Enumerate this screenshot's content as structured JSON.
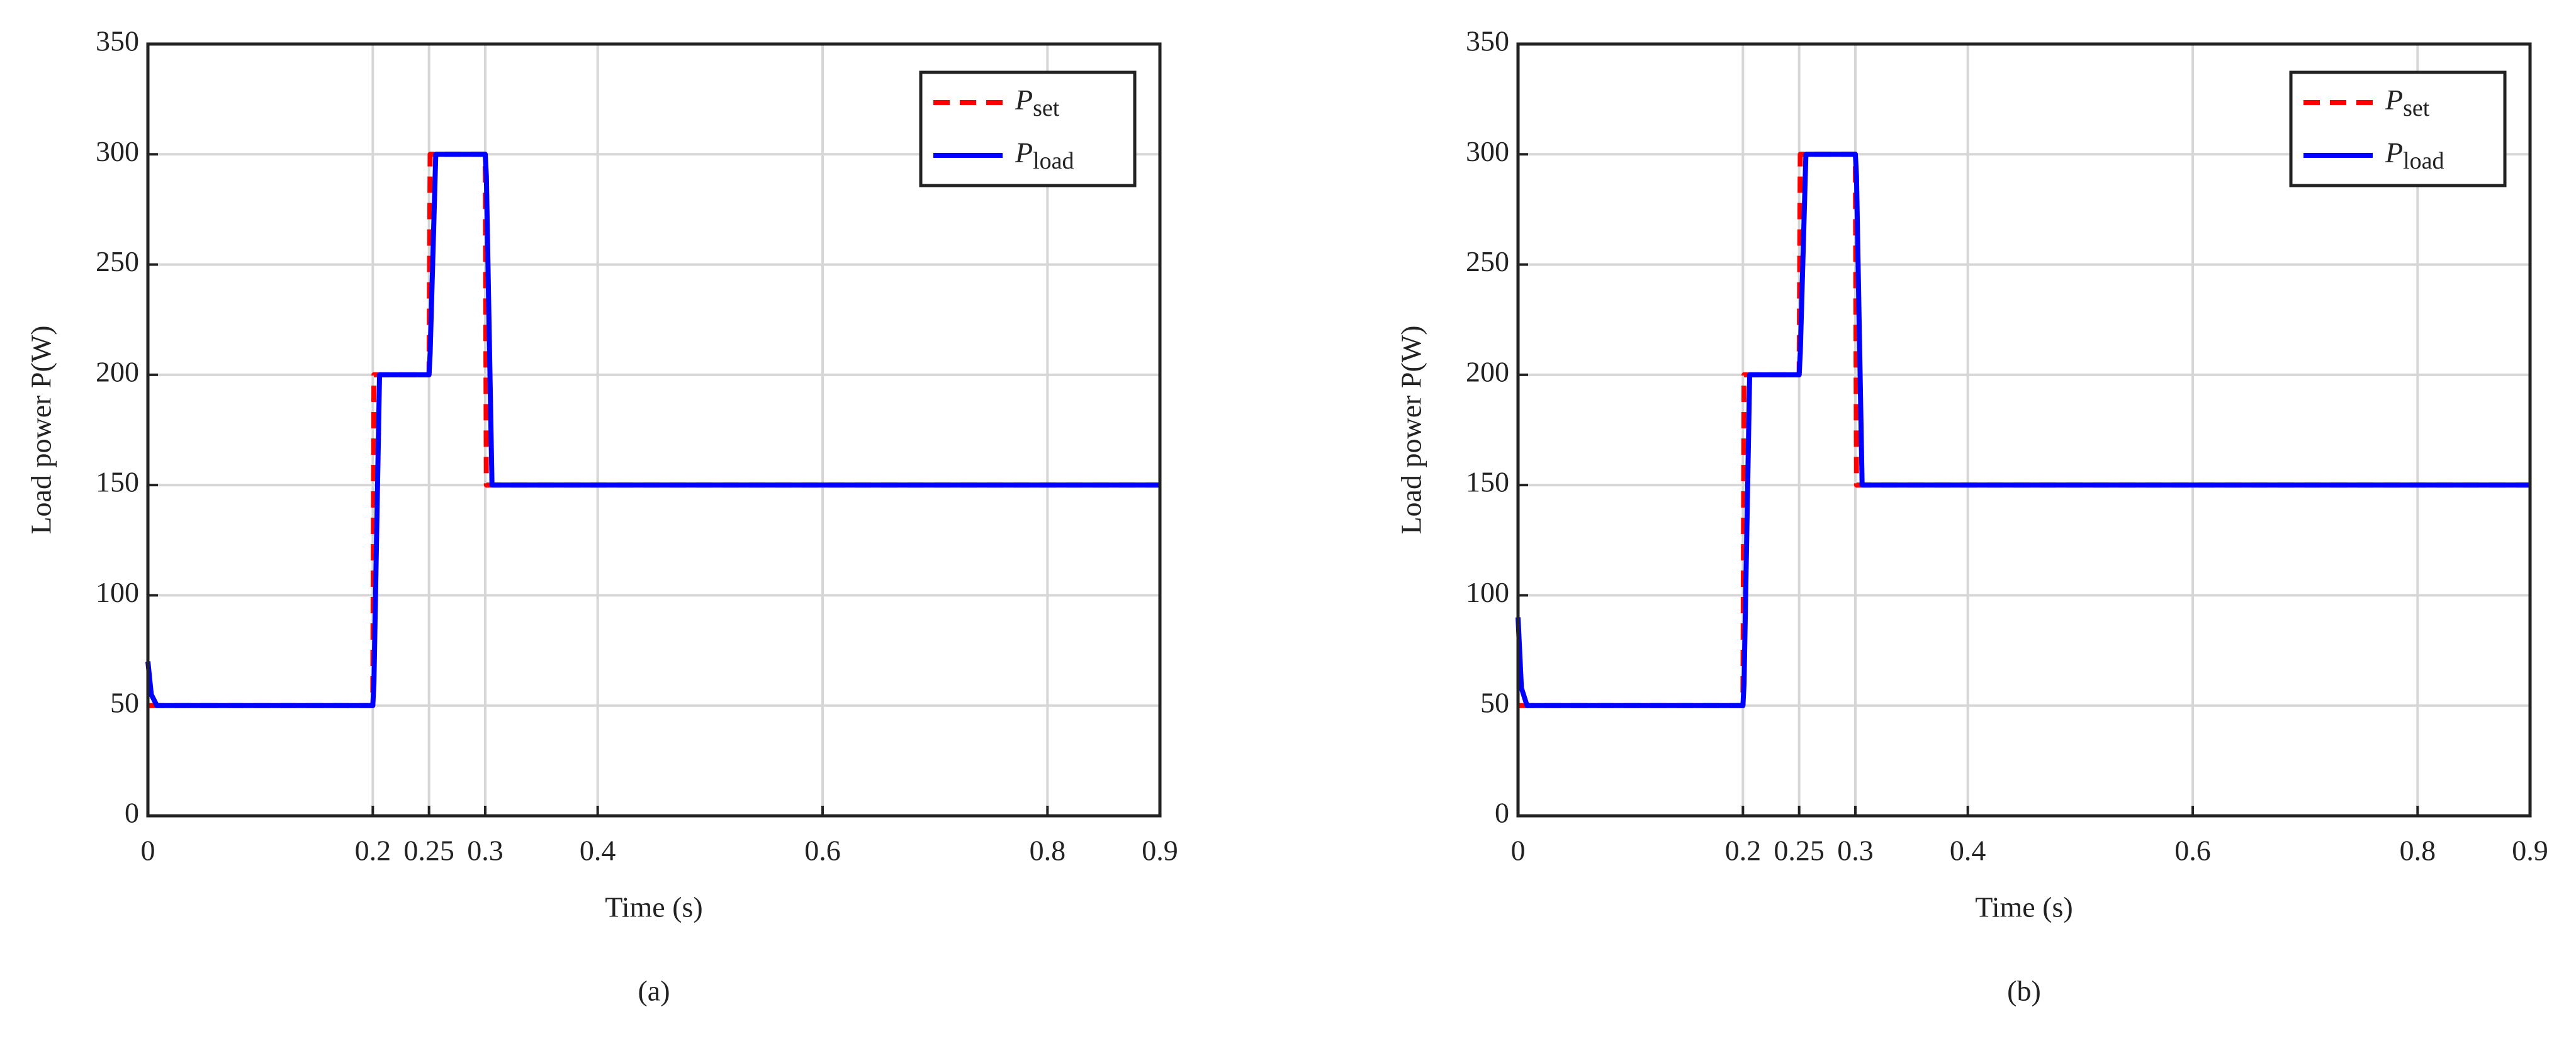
{
  "chart_data": [
    {
      "type": "line",
      "caption": "(a)",
      "x_label": "Time (s)",
      "y_label": "Load power P(W)",
      "x": [
        0,
        0.003,
        0.008,
        0.2,
        0.201,
        0.206,
        0.25,
        0.251,
        0.256,
        0.3,
        0.301,
        0.306,
        0.9
      ],
      "series": [
        {
          "name": "Pset",
          "color": "#ff0000",
          "dash": true,
          "values": [
            50,
            50,
            50,
            50,
            200,
            200,
            200,
            300,
            300,
            300,
            150,
            150,
            150
          ]
        },
        {
          "name": "Pload",
          "color": "#0000ff",
          "dash": false,
          "values": [
            70,
            55,
            50,
            50,
            60,
            200,
            200,
            210,
            300,
            300,
            290,
            150,
            150
          ]
        }
      ],
      "xlim": [
        0,
        0.9
      ],
      "xticks": [
        0,
        0.2,
        0.25,
        0.3,
        0.4,
        0.6,
        0.8,
        0.9
      ],
      "ylim": [
        0,
        350
      ],
      "yticks": [
        0,
        50,
        100,
        150,
        200,
        250,
        300,
        350
      ],
      "grid": true,
      "legend": "upper-right"
    },
    {
      "type": "line",
      "caption": "(b)",
      "x_label": "Time (s)",
      "y_label": "Load power P(W)",
      "x": [
        0,
        0.003,
        0.008,
        0.2,
        0.201,
        0.206,
        0.25,
        0.251,
        0.256,
        0.3,
        0.301,
        0.306,
        0.9
      ],
      "series": [
        {
          "name": "Pset",
          "color": "#ff0000",
          "dash": true,
          "values": [
            50,
            50,
            50,
            50,
            200,
            200,
            200,
            300,
            300,
            300,
            150,
            150,
            150
          ]
        },
        {
          "name": "Pload",
          "color": "#0000ff",
          "dash": false,
          "values": [
            90,
            58,
            50,
            50,
            60,
            200,
            200,
            210,
            300,
            300,
            290,
            150,
            150
          ]
        }
      ],
      "xlim": [
        0,
        0.9
      ],
      "xticks": [
        0,
        0.2,
        0.25,
        0.3,
        0.4,
        0.6,
        0.8,
        0.9
      ],
      "ylim": [
        0,
        350
      ],
      "yticks": [
        0,
        50,
        100,
        150,
        200,
        250,
        300,
        350
      ],
      "grid": true,
      "legend": "upper-right"
    }
  ]
}
